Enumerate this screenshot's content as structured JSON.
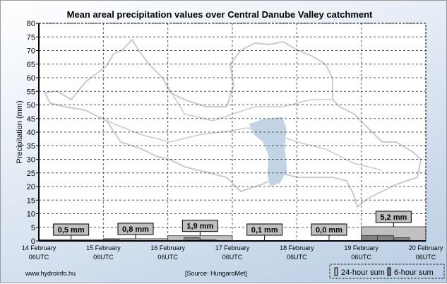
{
  "chart_data": {
    "type": "bar",
    "title": "Mean areal precipitation values over Central Danube Valley catchment",
    "ylabel": "Precipitation (mm)",
    "xlabel": "",
    "ylim": [
      0,
      80
    ],
    "yticks": [
      0,
      5,
      10,
      15,
      20,
      25,
      30,
      35,
      40,
      45,
      50,
      55,
      60,
      65,
      70,
      75,
      80
    ],
    "grid": true,
    "x_ticks": [
      {
        "line1": "14 February",
        "line2": "06UTC"
      },
      {
        "line1": "15 February",
        "line2": "06UTC"
      },
      {
        "line1": "16 February",
        "line2": "06UTC"
      },
      {
        "line1": "17 February",
        "line2": "06UTC"
      },
      {
        "line1": "18 February",
        "line2": "06UTC"
      },
      {
        "line1": "19 February",
        "line2": "06UTC"
      },
      {
        "line1": "20 February",
        "line2": "06UTC"
      }
    ],
    "series": [
      {
        "name": "24-hour sum",
        "color": "#c0c0c0",
        "values": [
          0.5,
          0.8,
          1.9,
          0.1,
          0.0,
          5.2
        ]
      },
      {
        "name": "6-hour sum",
        "color": "#808080",
        "values": [
          0.1,
          0.1,
          0.1,
          0.1,
          0.6,
          0.2,
          0.0,
          0.0,
          0.2,
          1.2,
          0.4,
          0.1,
          0.0,
          0.0,
          0.1,
          0.0,
          0.0,
          0.0,
          0.0,
          0.0,
          2.0,
          2.0,
          1.2,
          0.0
        ]
      }
    ],
    "data_labels": [
      "0,5 mm",
      "0,8 mm",
      "1,9 mm",
      "0,1 mm",
      "0,0 mm",
      "5,2 mm"
    ],
    "legend_position": "bottom-right"
  },
  "footer": {
    "website": "www.hydroinfo.hu",
    "source": "[Source: HungaroMet]"
  },
  "colors": {
    "map_outline": "#c8cad6",
    "map_fill": "#c2d3e6"
  }
}
